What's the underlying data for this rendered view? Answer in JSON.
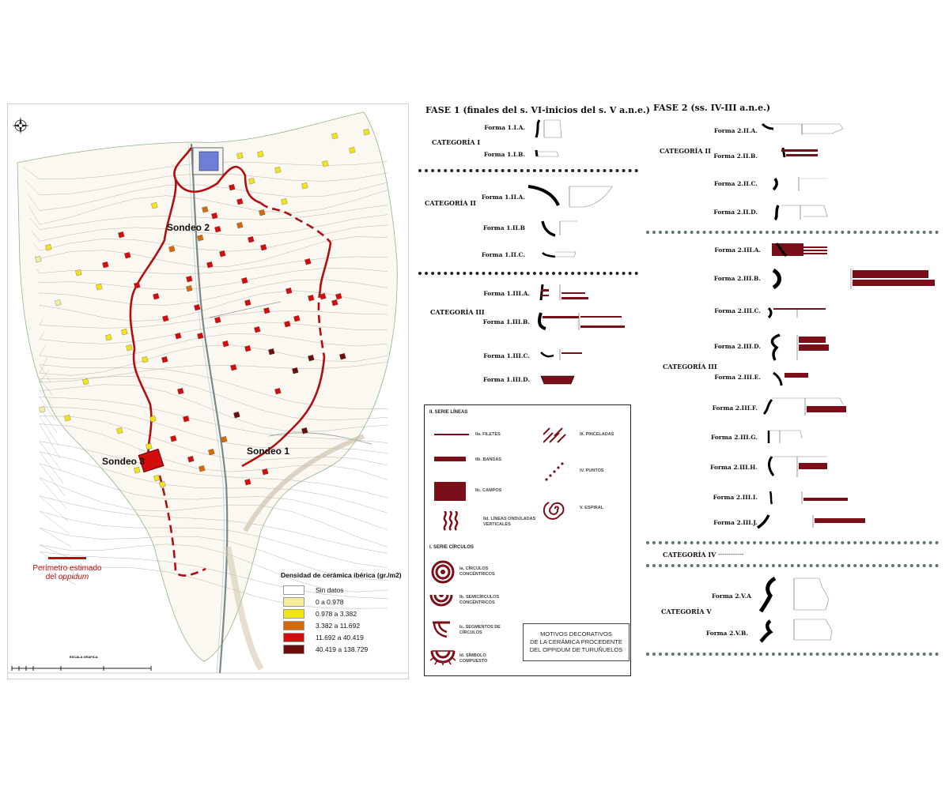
{
  "map": {
    "sondeos": [
      "Sondeo 2",
      "Sondeo 3",
      "Sondeo 1"
    ],
    "perimeter_legend": {
      "line1": "Perímetro estimado",
      "line2_prefix": "del ",
      "line2_italic": "oppidum"
    },
    "density_legend": {
      "title": "Densidad de cerámica ibérica (gr./m2)",
      "items": [
        {
          "label": "Sin datos",
          "color": "#ffffff"
        },
        {
          "label": "0 a 0.978",
          "color": "#f6ee9c"
        },
        {
          "label": "0.978 a 3.382",
          "color": "#f2e31a"
        },
        {
          "label": "3.382 a 11.692",
          "color": "#d46a0a"
        },
        {
          "label": "11.692 a 40.419",
          "color": "#d40c0c"
        },
        {
          "label": "40.419 a 138.729",
          "color": "#6e0b0b"
        }
      ]
    },
    "scale_title": "ESCALA GRÁFICA",
    "colors": {
      "perimeter": "#b10f0f",
      "contour": "#a8a29a",
      "road": "#7a8a8a"
    }
  },
  "fase1": {
    "title": "FASE 1 (finales del s. VI-inicios del s. V a.n.e.)",
    "categories": [
      {
        "label": "CATEGORÍA I",
        "formas": [
          "Forma 1.I.A.",
          "Forma 1.I.B."
        ]
      },
      {
        "label": "CATEGORÍA II",
        "formas": [
          "Forma 1.II.A.",
          "Forma 1.II.B",
          "Forma 1.II.C."
        ]
      },
      {
        "label": "CATEGORÍA III",
        "formas": [
          "Forma 1.III.A.",
          "Forma 1.III.B.",
          "Forma 1.III.C.",
          "Forma 1.III.D."
        ]
      }
    ]
  },
  "fase2": {
    "title": "FASE 2 (ss. IV-III a.n.e.)",
    "categories": [
      {
        "label": "CATEGORÍA II",
        "formas": [
          "Forma 2.II.A.",
          "Forma 2.II.B.",
          "Forma 2.II.C.",
          "Forma 2.II.D."
        ]
      },
      {
        "label": "CATEGORÍA III",
        "formas": [
          "Forma 2.III.A.",
          "Forma 2.III.B.",
          "Forma 2.III.C.",
          "Forma 2.III.D.",
          "Forma 2.III.E.",
          "Forma 2.III.F.",
          "Forma 2.III.G.",
          "Forma 2.III.H.",
          "Forma 2.III.I.",
          "Forma 2.III.J."
        ]
      },
      {
        "label": "CATEGORÍA IV",
        "dash": "------------"
      },
      {
        "label": "CATEGORÍA V",
        "formas": [
          "Forma 2.V.A",
          "Forma 2.V.B."
        ]
      }
    ]
  },
  "motifs": {
    "serie_lineas": "II. SERIE LÍNEAS",
    "serie_circulos": "I. SERIE CÍRCULOS",
    "items": {
      "iia": "IIa. FILETES",
      "iib": "IIb. BANDAS",
      "iic": "IIc. CAMPOS",
      "iid": [
        "IId. LÍNEAS ONDULADAS",
        "VERTICALES"
      ],
      "iii": "III. PINCELADAS",
      "iv": "IV. PUNTOS",
      "v": "V. ESPIRAL",
      "ia": [
        "Ia. CÍRCULOS",
        "CONCÉNTRICOS"
      ],
      "ib": [
        "Ib. SEMICÍRCULOS",
        "CONCÉNTRICOS"
      ],
      "ic": [
        "Ic. SEGMENTOS DE",
        "CÍRCULOS"
      ],
      "id": [
        "Id. SÍMBOLO",
        "COMPUESTO"
      ]
    },
    "title_box": [
      "MOTIVOS DECORATIVOS",
      "DE LA CERÁMICA PROCEDENTE",
      "DEL OPPIDUM DE TURUÑUELOS"
    ],
    "colors": {
      "paint": "#7a0f19"
    }
  }
}
